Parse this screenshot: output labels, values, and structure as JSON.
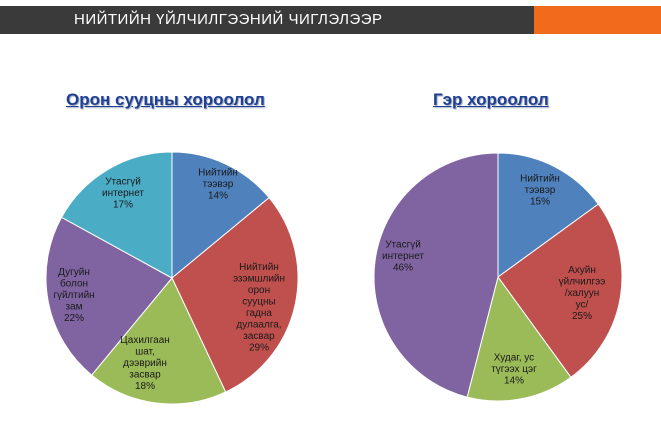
{
  "header": {
    "title": "НИЙТИЙН ҮЙЛЧИЛГЭЭНИЙ ЧИГЛЭЛЭЭР"
  },
  "chart_data": [
    {
      "type": "pie",
      "title": "Орон сууцны хороолол",
      "slices": [
        {
          "label": [
            "Нийтийн",
            "тээвэр"
          ],
          "value": 14,
          "display": "14%",
          "color": "#4f81bd"
        },
        {
          "label": [
            "Нийтийн",
            "эзэмшлийн",
            "орон",
            "сууцны",
            "гадна",
            "дулаалга,",
            "засвар"
          ],
          "value": 29,
          "display": "29%",
          "color": "#c0504d"
        },
        {
          "label": [
            "Цахилгаан",
            "шат,",
            "дээврийн",
            "засвар"
          ],
          "value": 18,
          "display": "18%",
          "color": "#9bbb59"
        },
        {
          "label": [
            "Дугуйн",
            "болон",
            "гүйлтийн",
            "зам"
          ],
          "value": 22,
          "display": "22%",
          "color": "#8064a2"
        },
        {
          "label": [
            "Утасгүй",
            "интернет"
          ],
          "value": 17,
          "display": "17%",
          "color": "#4bacc6"
        }
      ]
    },
    {
      "type": "pie",
      "title": "Гэр хороолол",
      "slices": [
        {
          "label": [
            "Нийтийн",
            "тээвэр"
          ],
          "value": 15,
          "display": "15%",
          "color": "#4f81bd"
        },
        {
          "label": [
            "Ахуйн",
            "үйлчилгээ",
            "/халуун",
            "ус/"
          ],
          "value": 25,
          "display": "25%",
          "color": "#c0504d"
        },
        {
          "label": [
            "Худаг, ус",
            "түгээх цэг"
          ],
          "value": 14,
          "display": "14%",
          "color": "#9bbb59"
        },
        {
          "label": [
            "Утасгүй",
            "интернет"
          ],
          "value": 46,
          "display": "46%",
          "color": "#8064a2"
        }
      ]
    }
  ]
}
